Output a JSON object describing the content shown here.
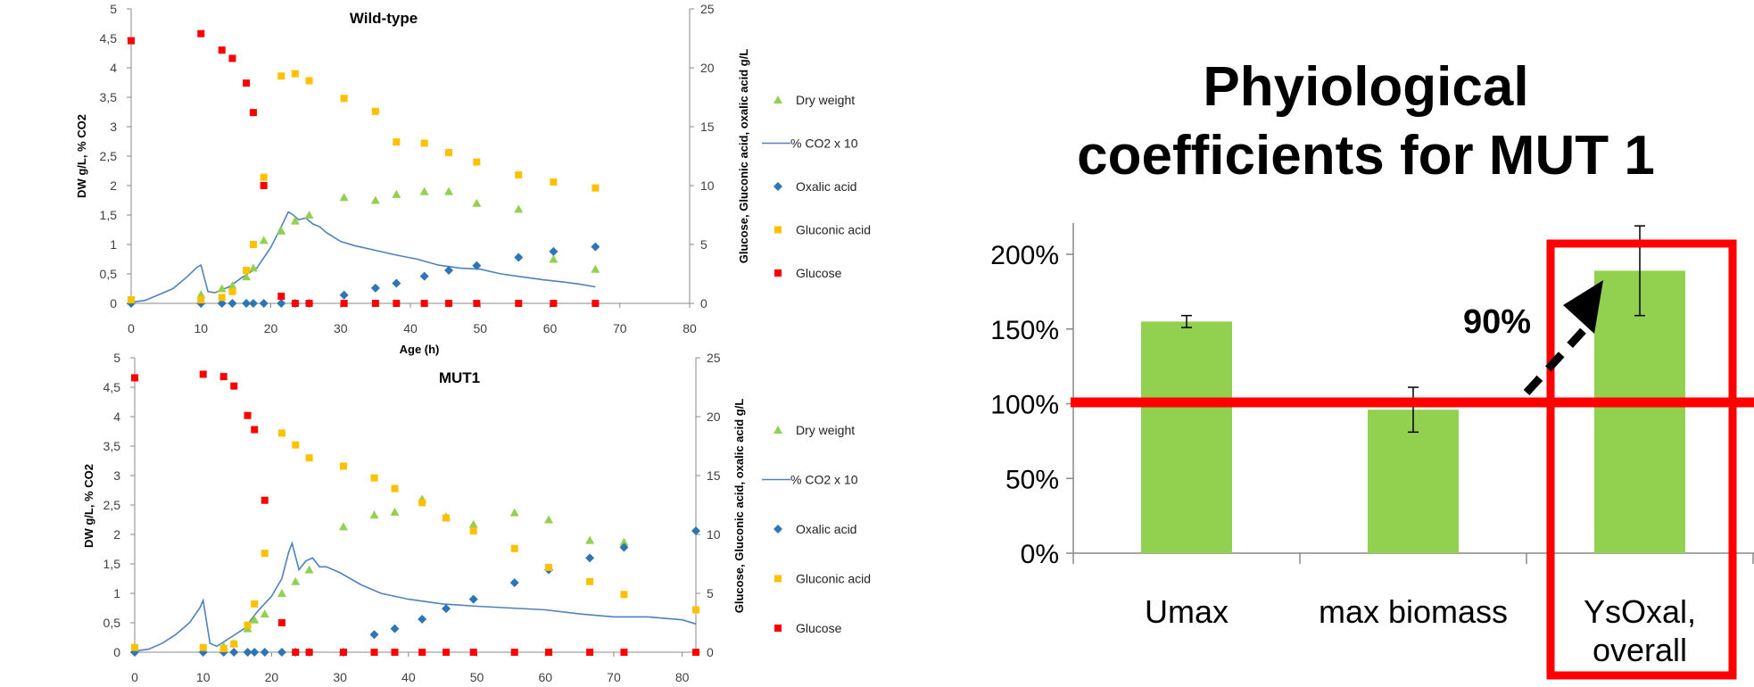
{
  "chart_data": [
    {
      "type": "scatter",
      "title": "Wild-type",
      "xlabel": "Age (h)",
      "ylabel": "DW g/L, % CO2",
      "y2label": "Glucose, Gluconic acid, oxalic acid g/L",
      "xlim": [
        0,
        80
      ],
      "ylim": [
        0,
        5
      ],
      "y2lim": [
        0,
        25
      ],
      "xticks": [
        "0",
        "10",
        "20",
        "30",
        "40",
        "50",
        "60",
        "70",
        "80"
      ],
      "yticks": [
        "0",
        "0,5",
        "1",
        "1,5",
        "2",
        "2,5",
        "3",
        "3,5",
        "4",
        "4,5",
        "5"
      ],
      "y2ticks": [
        "0",
        "5",
        "10",
        "15",
        "20",
        "25"
      ],
      "legend": [
        "Dry weight",
        "% CO2 x 10",
        "Oxalic acid",
        "Gluconic acid",
        "Glucose"
      ],
      "series": [
        {
          "name": "Dry weight",
          "marker": "triangle",
          "color": "#92d050",
          "axis": "left",
          "x": [
            0,
            10,
            13,
            14.5,
            16.5,
            17.5,
            19,
            21.5,
            23.5,
            25.5,
            30.5,
            35,
            38,
            42,
            45.5,
            49.5,
            55.5,
            60.5,
            66.5
          ],
          "y": [
            0.05,
            0.15,
            0.25,
            0.3,
            0.45,
            0.6,
            1.07,
            1.23,
            1.4,
            1.5,
            1.8,
            1.75,
            1.85,
            1.9,
            1.9,
            1.7,
            1.6,
            0.75,
            0.58
          ]
        },
        {
          "name": "% CO2 x 10",
          "line": true,
          "color": "#4f81bd",
          "axis": "left",
          "x": [
            0,
            2,
            4,
            6,
            8,
            9.5,
            10,
            11,
            12,
            14,
            16,
            18,
            20,
            21.5,
            22.5,
            23,
            24,
            25,
            26,
            27,
            28,
            30,
            32,
            35,
            38,
            41,
            44,
            47,
            50,
            53,
            56,
            59,
            62,
            64,
            66.5
          ],
          "y": [
            0.02,
            0.05,
            0.15,
            0.25,
            0.45,
            0.62,
            0.65,
            0.2,
            0.18,
            0.28,
            0.45,
            0.6,
            0.95,
            1.3,
            1.55,
            1.52,
            1.42,
            1.45,
            1.35,
            1.3,
            1.2,
            1.05,
            0.98,
            0.9,
            0.82,
            0.75,
            0.65,
            0.6,
            0.58,
            0.5,
            0.45,
            0.4,
            0.36,
            0.33,
            0.28
          ]
        },
        {
          "name": "Oxalic acid",
          "marker": "diamond",
          "color": "#2e75b6",
          "axis": "right",
          "x": [
            0,
            10,
            13,
            14.5,
            16.5,
            17.5,
            19,
            21.5,
            23.5,
            25.5,
            30.5,
            35,
            38,
            42,
            45.5,
            49.5,
            55.5,
            60.5,
            66.5
          ],
          "y": [
            0,
            0,
            0,
            0,
            0,
            0,
            0,
            0,
            0,
            0,
            0.7,
            1.3,
            1.7,
            2.3,
            2.8,
            3.2,
            3.9,
            4.4,
            4.8
          ]
        },
        {
          "name": "Gluconic acid",
          "marker": "square",
          "color": "#ffc000",
          "axis": "right",
          "x": [
            0,
            10,
            13,
            14.5,
            16.5,
            17.5,
            19,
            21.5,
            23.5,
            25.5,
            30.5,
            35,
            38,
            42,
            45.5,
            49.5,
            55.5,
            60.5,
            66.5
          ],
          "y": [
            0.3,
            0.3,
            0.5,
            1.0,
            2.8,
            5.0,
            10.7,
            19.3,
            19.5,
            18.9,
            17.4,
            16.3,
            13.7,
            13.6,
            12.8,
            12.0,
            10.9,
            10.3,
            9.8
          ]
        },
        {
          "name": "Glucose",
          "marker": "square",
          "color": "#ff0000",
          "axis": "right",
          "x": [
            0,
            10,
            13,
            14.5,
            16.5,
            17.5,
            19,
            21.5,
            23.5,
            25.5,
            30.5,
            35,
            38,
            42,
            45.5,
            49.5,
            55.5,
            60.5,
            66.5
          ],
          "y": [
            22.3,
            22.9,
            21.5,
            20.8,
            18.7,
            16.2,
            10.0,
            0.6,
            0,
            0,
            0,
            0,
            0,
            0,
            0,
            0,
            0,
            0,
            0
          ]
        }
      ]
    },
    {
      "type": "scatter",
      "title": "MUT1",
      "xlabel": "",
      "ylabel": "DW g/L, % CO2",
      "y2label": "Glucose, Gluconic acid, oxalic acid g/L",
      "xlim": [
        0,
        82
      ],
      "ylim": [
        0,
        5
      ],
      "y2lim": [
        0,
        25
      ],
      "xticks": [
        "0",
        "10",
        "20",
        "30",
        "40",
        "50",
        "60",
        "70",
        "80"
      ],
      "yticks": [
        "0",
        "0,5",
        "1",
        "1,5",
        "2",
        "2,5",
        "3",
        "3,5",
        "4",
        "4,5",
        "5"
      ],
      "y2ticks": [
        "0",
        "5",
        "10",
        "15",
        "20",
        "25"
      ],
      "legend": [
        "Dry weight",
        "% CO2 x 10",
        "Oxalic acid",
        "Gluconic acid",
        "Glucose"
      ],
      "series": [
        {
          "name": "Dry weight",
          "marker": "triangle",
          "color": "#92d050",
          "axis": "left",
          "x": [
            0,
            10,
            13,
            14.5,
            16.5,
            17.5,
            19,
            21.5,
            23.5,
            25.5,
            30.5,
            35,
            38,
            42,
            45.5,
            49.5,
            55.5,
            60.5,
            66.5,
            71.5
          ],
          "y": [
            0.05,
            0.05,
            0.1,
            0.15,
            0.4,
            0.55,
            0.65,
            1.0,
            1.2,
            1.4,
            2.13,
            2.33,
            2.38,
            2.6,
            2.3,
            2.17,
            2.37,
            2.25,
            1.9,
            1.87
          ]
        },
        {
          "name": "% CO2 x 10",
          "line": true,
          "color": "#4f81bd",
          "axis": "left",
          "x": [
            0,
            2,
            4,
            6,
            8,
            9.5,
            10,
            11,
            12,
            14,
            16,
            18,
            20,
            21.5,
            22.5,
            23,
            24,
            25,
            26,
            27,
            28,
            30,
            33,
            36,
            40,
            45,
            50,
            55,
            60,
            65,
            70,
            75,
            80,
            82
          ],
          "y": [
            0.02,
            0.05,
            0.15,
            0.3,
            0.5,
            0.75,
            0.88,
            0.15,
            0.1,
            0.25,
            0.4,
            0.7,
            0.95,
            1.25,
            1.7,
            1.85,
            1.4,
            1.55,
            1.6,
            1.45,
            1.45,
            1.35,
            1.15,
            1.0,
            0.9,
            0.82,
            0.78,
            0.75,
            0.72,
            0.65,
            0.6,
            0.6,
            0.55,
            0.48
          ]
        },
        {
          "name": "Oxalic acid",
          "marker": "diamond",
          "color": "#2e75b6",
          "axis": "right",
          "x": [
            0,
            10,
            13,
            14.5,
            16.5,
            17.5,
            19,
            21.5,
            23.5,
            25.5,
            30.5,
            35,
            38,
            42,
            45.5,
            49.5,
            55.5,
            60.5,
            66.5,
            71.5,
            82
          ],
          "y": [
            0,
            0,
            0,
            0,
            0,
            0,
            0,
            0,
            0,
            0,
            0,
            1.5,
            2.0,
            2.8,
            3.7,
            4.5,
            5.9,
            7.0,
            8.0,
            8.9,
            10.3
          ]
        },
        {
          "name": "Gluconic acid",
          "marker": "square",
          "color": "#ffc000",
          "axis": "right",
          "x": [
            0,
            10,
            13,
            14.5,
            16.5,
            17.5,
            19,
            21.5,
            23.5,
            25.5,
            30.5,
            35,
            38,
            42,
            45.5,
            49.5,
            55.5,
            60.5,
            66.5,
            71.5,
            82
          ],
          "y": [
            0.4,
            0.4,
            0.3,
            0.7,
            2.3,
            4.1,
            8.4,
            18.6,
            17.6,
            16.5,
            15.8,
            14.8,
            13.9,
            12.7,
            11.4,
            10.3,
            8.8,
            7.2,
            6.0,
            4.9,
            3.6
          ]
        },
        {
          "name": "Glucose",
          "marker": "square",
          "color": "#ff0000",
          "axis": "right",
          "x": [
            0,
            10,
            13,
            14.5,
            16.5,
            17.5,
            19,
            21.5,
            23.5,
            25.5,
            30.5,
            35,
            38,
            42,
            45.5,
            49.5,
            55.5,
            60.5,
            66.5,
            71.5,
            82
          ],
          "y": [
            23.3,
            23.6,
            23.4,
            22.6,
            20.1,
            18.9,
            12.9,
            2.5,
            0,
            0,
            0,
            0,
            0,
            0,
            0,
            0,
            0,
            0,
            0,
            0,
            0
          ]
        }
      ]
    },
    {
      "type": "bar",
      "categories": [
        "Umax",
        "max biomass",
        "YsOxal, overall"
      ],
      "values": [
        155,
        96,
        189
      ],
      "errors": [
        4,
        15,
        30
      ],
      "ylim": [
        0,
        200
      ],
      "yticks": [
        "0%",
        "50%",
        "100%",
        "150%",
        "200%"
      ],
      "bar_color": "#92d050",
      "reference_line": 100,
      "reference_color": "#ff0000",
      "highlight_category": "YsOxal, overall",
      "annotation": "90%"
    }
  ],
  "heading": {
    "line1": "Phyiological",
    "line2": "coefficients for MUT 1"
  }
}
